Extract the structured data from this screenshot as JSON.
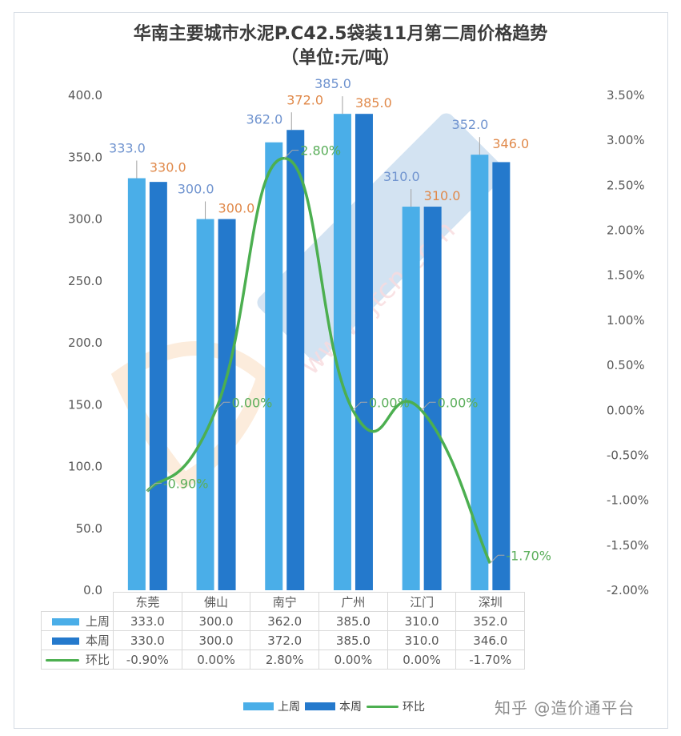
{
  "chart_data": {
    "type": "bar",
    "title": "华南主要城市水泥P.C42.5袋装11月第二周价格趋势",
    "subtitle": "（单位:元/吨）",
    "categories": [
      "东莞",
      "佛山",
      "南宁",
      "广州",
      "江门",
      "深圳"
    ],
    "series": [
      {
        "name": "上周",
        "type": "bar",
        "axis": "left",
        "color": "#4aaee8",
        "label_color": "#6f93cf",
        "values": [
          333.0,
          300.0,
          362.0,
          385.0,
          310.0,
          352.0
        ],
        "labels": [
          "333.0",
          "300.0",
          "362.0",
          "385.0",
          "310.0",
          "352.0"
        ]
      },
      {
        "name": "本周",
        "type": "bar",
        "axis": "left",
        "color": "#2479cc",
        "label_color": "#e0894a",
        "values": [
          330.0,
          300.0,
          372.0,
          385.0,
          310.0,
          346.0
        ],
        "labels": [
          "330.0",
          "300.0",
          "372.0",
          "385.0",
          "310.0",
          "346.0"
        ]
      },
      {
        "name": "环比",
        "type": "line",
        "axis": "right",
        "color": "#4caf50",
        "label_color": "#5aae5a",
        "values": [
          -0.9,
          0.0,
          2.8,
          0.0,
          0.0,
          -1.7
        ],
        "labels": [
          "-0.90%",
          "0.00%",
          "2.80%",
          "0.00%",
          "0.00%",
          "-1.70%"
        ]
      }
    ],
    "left_axis": {
      "min": 0,
      "max": 400,
      "step": 50,
      "ticks": [
        "400.0",
        "350.0",
        "300.0",
        "250.0",
        "200.0",
        "150.0",
        "100.0",
        "50.0",
        "0.0"
      ]
    },
    "right_axis": {
      "min": -2.0,
      "max": 3.5,
      "step": 0.5,
      "ticks": [
        "3.50%",
        "3.00%",
        "2.50%",
        "2.00%",
        "1.50%",
        "1.00%",
        "0.50%",
        "0.00%",
        "-0.50%",
        "-1.00%",
        "-1.50%",
        "-2.00%"
      ]
    },
    "grid": false,
    "legend_position": "bottom",
    "data_table": true
  },
  "table": {
    "header": [
      "东莞",
      "佛山",
      "南宁",
      "广州",
      "江门",
      "深圳"
    ],
    "rows": [
      {
        "label": "上周",
        "cells": [
          "333.0",
          "300.0",
          "362.0",
          "385.0",
          "310.0",
          "352.0"
        ]
      },
      {
        "label": "本周",
        "cells": [
          "330.0",
          "300.0",
          "372.0",
          "385.0",
          "310.0",
          "346.0"
        ]
      },
      {
        "label": "环比",
        "cells": [
          "-0.90%",
          "0.00%",
          "2.80%",
          "0.00%",
          "0.00%",
          "-1.70%"
        ]
      }
    ]
  },
  "legend": {
    "items": [
      "上周",
      "本周",
      "环比"
    ]
  },
  "watermark": {
    "text": "www.zjtcn.com"
  },
  "credit": "知乎 @造价通平台"
}
